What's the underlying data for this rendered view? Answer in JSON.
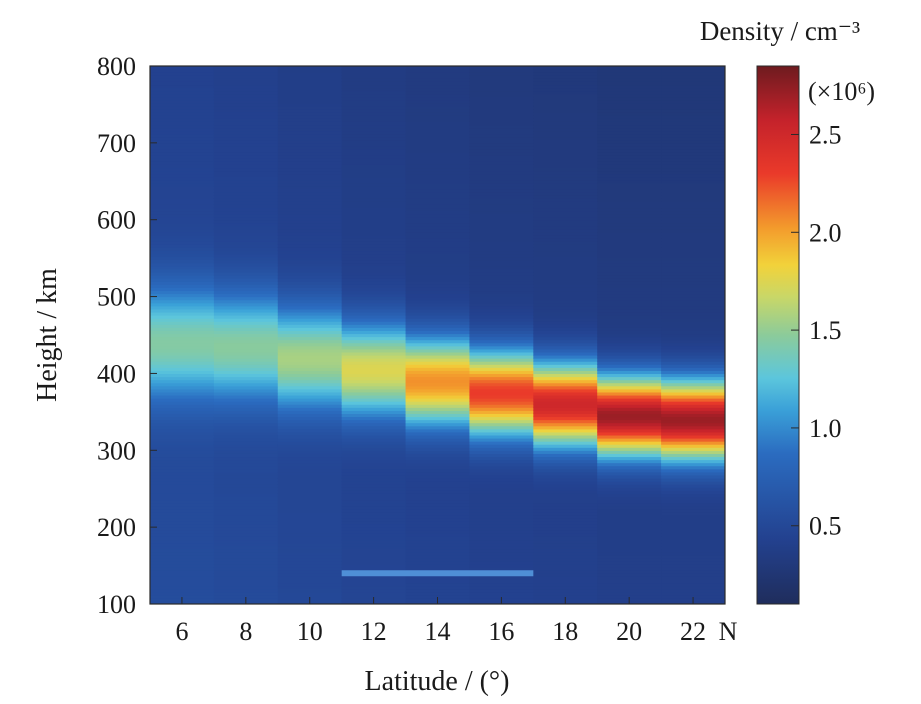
{
  "chart_data": {
    "type": "heatmap",
    "title": "",
    "xlabel": "Latitude / (°)",
    "ylabel": "Height / km",
    "x_unit_suffix": "N",
    "xlim": [
      5,
      23
    ],
    "ylim": [
      100,
      800
    ],
    "x_ticks": [
      6,
      8,
      10,
      12,
      14,
      16,
      18,
      20,
      22
    ],
    "x_tick_labels": [
      "6",
      "8",
      "10",
      "12",
      "14",
      "16",
      "18",
      "20",
      "22"
    ],
    "y_ticks": [
      100,
      200,
      300,
      400,
      500,
      600,
      700,
      800
    ],
    "y_tick_labels": [
      "100",
      "200",
      "300",
      "400",
      "500",
      "600",
      "700",
      "800"
    ],
    "latitudes": [
      6,
      8,
      10,
      12,
      14,
      16,
      18,
      20,
      22
    ],
    "layers": [
      {
        "lat": 6,
        "peak_height": 440,
        "peak_density": 1.5,
        "width": 75,
        "base": 0.55
      },
      {
        "lat": 8,
        "peak_height": 435,
        "peak_density": 1.52,
        "width": 72,
        "base": 0.53
      },
      {
        "lat": 10,
        "peak_height": 420,
        "peak_density": 1.62,
        "width": 68,
        "base": 0.5
      },
      {
        "lat": 12,
        "peak_height": 405,
        "peak_density": 1.8,
        "width": 62,
        "base": 0.47
      },
      {
        "lat": 14,
        "peak_height": 390,
        "peak_density": 2.1,
        "width": 58,
        "base": 0.45
      },
      {
        "lat": 16,
        "peak_height": 375,
        "peak_density": 2.35,
        "width": 56,
        "base": 0.43
      },
      {
        "lat": 18,
        "peak_height": 360,
        "peak_density": 2.55,
        "width": 54,
        "base": 0.42
      },
      {
        "lat": 20,
        "peak_height": 345,
        "peak_density": 2.75,
        "width": 52,
        "base": 0.4
      },
      {
        "lat": 22,
        "peak_height": 340,
        "peak_density": 2.75,
        "width": 52,
        "base": 0.4
      }
    ],
    "annotation_line": {
      "lat_start": 11,
      "lat_end": 17,
      "height": 140
    },
    "colorbar": {
      "title": "Density / cm⁻³",
      "multiplier": "(×10⁶)",
      "range": [
        0.1,
        2.85
      ],
      "ticks": [
        0.5,
        1.0,
        1.5,
        2.0,
        2.5
      ],
      "tick_labels": [
        "0.5",
        "1.0",
        "1.5",
        "2.0",
        "2.5"
      ],
      "colormap": "jet"
    }
  }
}
